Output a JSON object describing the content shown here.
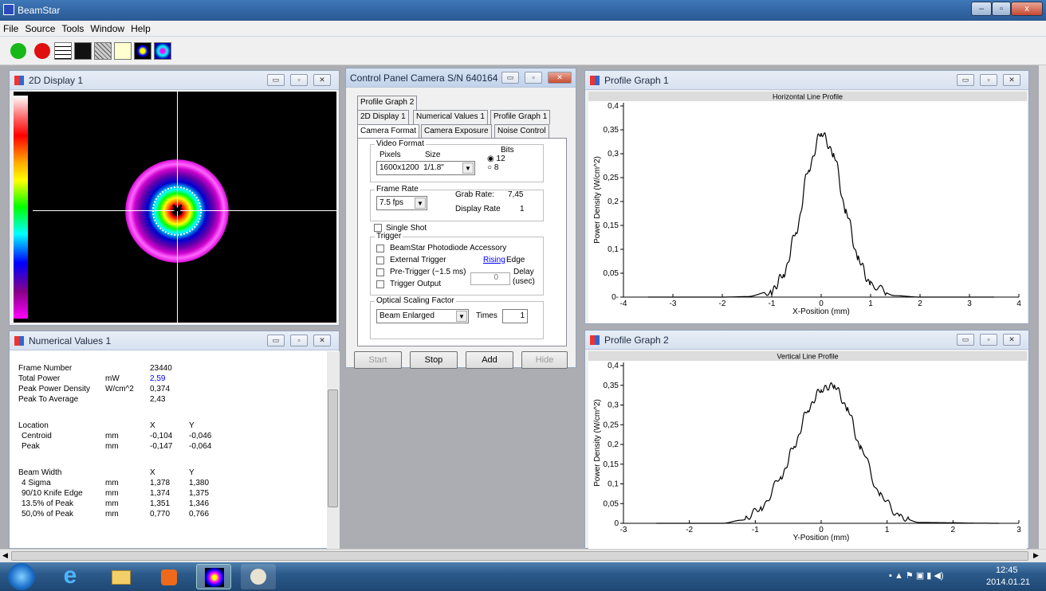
{
  "app": {
    "title": "BeamStar"
  },
  "menu": [
    "File",
    "Source",
    "Tools",
    "Window",
    "Help"
  ],
  "toolbar": [
    "start-icon",
    "stop-icon",
    "2d-display-icon",
    "3d-display-icon",
    "numerical-icon",
    "profile-icon",
    "camera-icon",
    "beam-icon"
  ],
  "display2d": {
    "title": "2D Display 1"
  },
  "numerical": {
    "title": "Numerical Values 1",
    "rows1": [
      [
        "Frame Number",
        "",
        "23440"
      ],
      [
        "Total Power",
        "mW",
        "2,59"
      ],
      [
        "Peak Power Density",
        "W/cm^2",
        "0,374"
      ],
      [
        "Peak To Average",
        "",
        "2,43"
      ]
    ],
    "location_header": [
      "Location",
      "X",
      "Y"
    ],
    "location": [
      [
        "Centroid",
        "mm",
        "-0,104",
        "-0,046"
      ],
      [
        "Peak",
        "mm",
        "-0,147",
        "-0,064"
      ]
    ],
    "beamwidth_header": [
      "Beam Width",
      "X",
      "Y"
    ],
    "beamwidth": [
      [
        "4 Sigma",
        "mm",
        "1,378",
        "1,380"
      ],
      [
        "90/10 Knife Edge",
        "mm",
        "1,374",
        "1,375"
      ],
      [
        "13.5% of Peak",
        "mm",
        "1,351",
        "1,346"
      ],
      [
        "50,0% of Peak",
        "mm",
        "0,770",
        "0,766"
      ]
    ]
  },
  "control": {
    "title": "Control Panel Camera S/N 640164",
    "tabs_row1": [
      "Profile Graph 2"
    ],
    "tabs_row2": [
      "2D Display 1",
      "Numerical Values 1",
      "Profile Graph 1"
    ],
    "tabs_row3": [
      "Camera Format",
      "Camera Exposure",
      "Noise Control"
    ],
    "video_format": "Video Format",
    "pixels_label": "Pixels",
    "size_label": "Size",
    "pixels_value": "1600x1200",
    "size_value": "1/1.8\"",
    "bits_label": "Bits",
    "bits": [
      "12",
      "8"
    ],
    "frame_rate": "Frame Rate",
    "fps_value": "7.5 fps",
    "grab_rate_label": "Grab Rate:",
    "grab_rate": "7,45",
    "display_rate_label": "Display Rate",
    "display_rate": "1",
    "single_shot": "Single Shot",
    "trigger": "Trigger",
    "trigger_items": [
      "BeamStar Photodiode Accessory",
      "External Trigger",
      "Pre-Trigger (~1.5 ms)",
      "Trigger Output"
    ],
    "rising": "Rising",
    "edge": "Edge",
    "delay": "Delay",
    "usec": "(usec)",
    "delay_value": "0",
    "osf": "Optical Scaling Factor",
    "osf_value": "Beam Enlarged",
    "times": "Times",
    "times_value": "1",
    "buttons": [
      "Start",
      "Stop",
      "Add",
      "Hide"
    ]
  },
  "pg1": {
    "title": "Profile Graph 1"
  },
  "pg2": {
    "title": "Profile Graph 2"
  },
  "tray": {
    "time": "12:45",
    "date": "2014.01.21"
  },
  "chart_data": [
    {
      "type": "line",
      "title": "Horizontal Line Profile",
      "xlabel": "X-Position (mm)",
      "ylabel": "Power Density (W/cm^2)",
      "xlim": [
        -4,
        4
      ],
      "ylim": [
        0,
        0.4
      ],
      "xticks": [
        "-4",
        "-3",
        "-2",
        "-1",
        "0",
        "1",
        "2",
        "3",
        "4"
      ],
      "yticks": [
        "0-",
        "0,05",
        "0,1",
        "0,15",
        "0,2",
        "0,25",
        "0,3",
        "0,35",
        "0,4"
      ],
      "series": [
        {
          "x": [
            -3.5,
            -2,
            -1.5,
            -1,
            -0.75,
            -0.5,
            -0.25,
            0,
            0.25,
            0.5,
            0.75,
            1,
            1.5,
            2,
            3.5
          ],
          "values": [
            0,
            0,
            0.001,
            0.012,
            0.05,
            0.14,
            0.27,
            0.345,
            0.3,
            0.18,
            0.08,
            0.025,
            0.003,
            0,
            0
          ]
        }
      ]
    },
    {
      "type": "line",
      "title": "Vertical Line Profile",
      "xlabel": "Y-Position (mm)",
      "ylabel": "Power Density (W/cm^2)",
      "xlim": [
        -3,
        3
      ],
      "ylim": [
        0,
        0.4
      ],
      "xticks": [
        "-3",
        "-2",
        "-1",
        "0",
        "1",
        "2",
        "3"
      ],
      "yticks": [
        "0",
        "0,05",
        "0,1",
        "0,15",
        "0,2",
        "0,25",
        "0,3",
        "0,35",
        "0,4"
      ],
      "series": [
        {
          "x": [
            -2.5,
            -1.5,
            -1.2,
            -0.9,
            -0.6,
            -0.4,
            -0.2,
            0,
            0.2,
            0.4,
            0.6,
            0.9,
            1.2,
            1.5,
            2.7
          ],
          "values": [
            0,
            0,
            0.008,
            0.04,
            0.12,
            0.2,
            0.29,
            0.34,
            0.35,
            0.29,
            0.19,
            0.07,
            0.015,
            0.002,
            0
          ]
        }
      ]
    }
  ]
}
